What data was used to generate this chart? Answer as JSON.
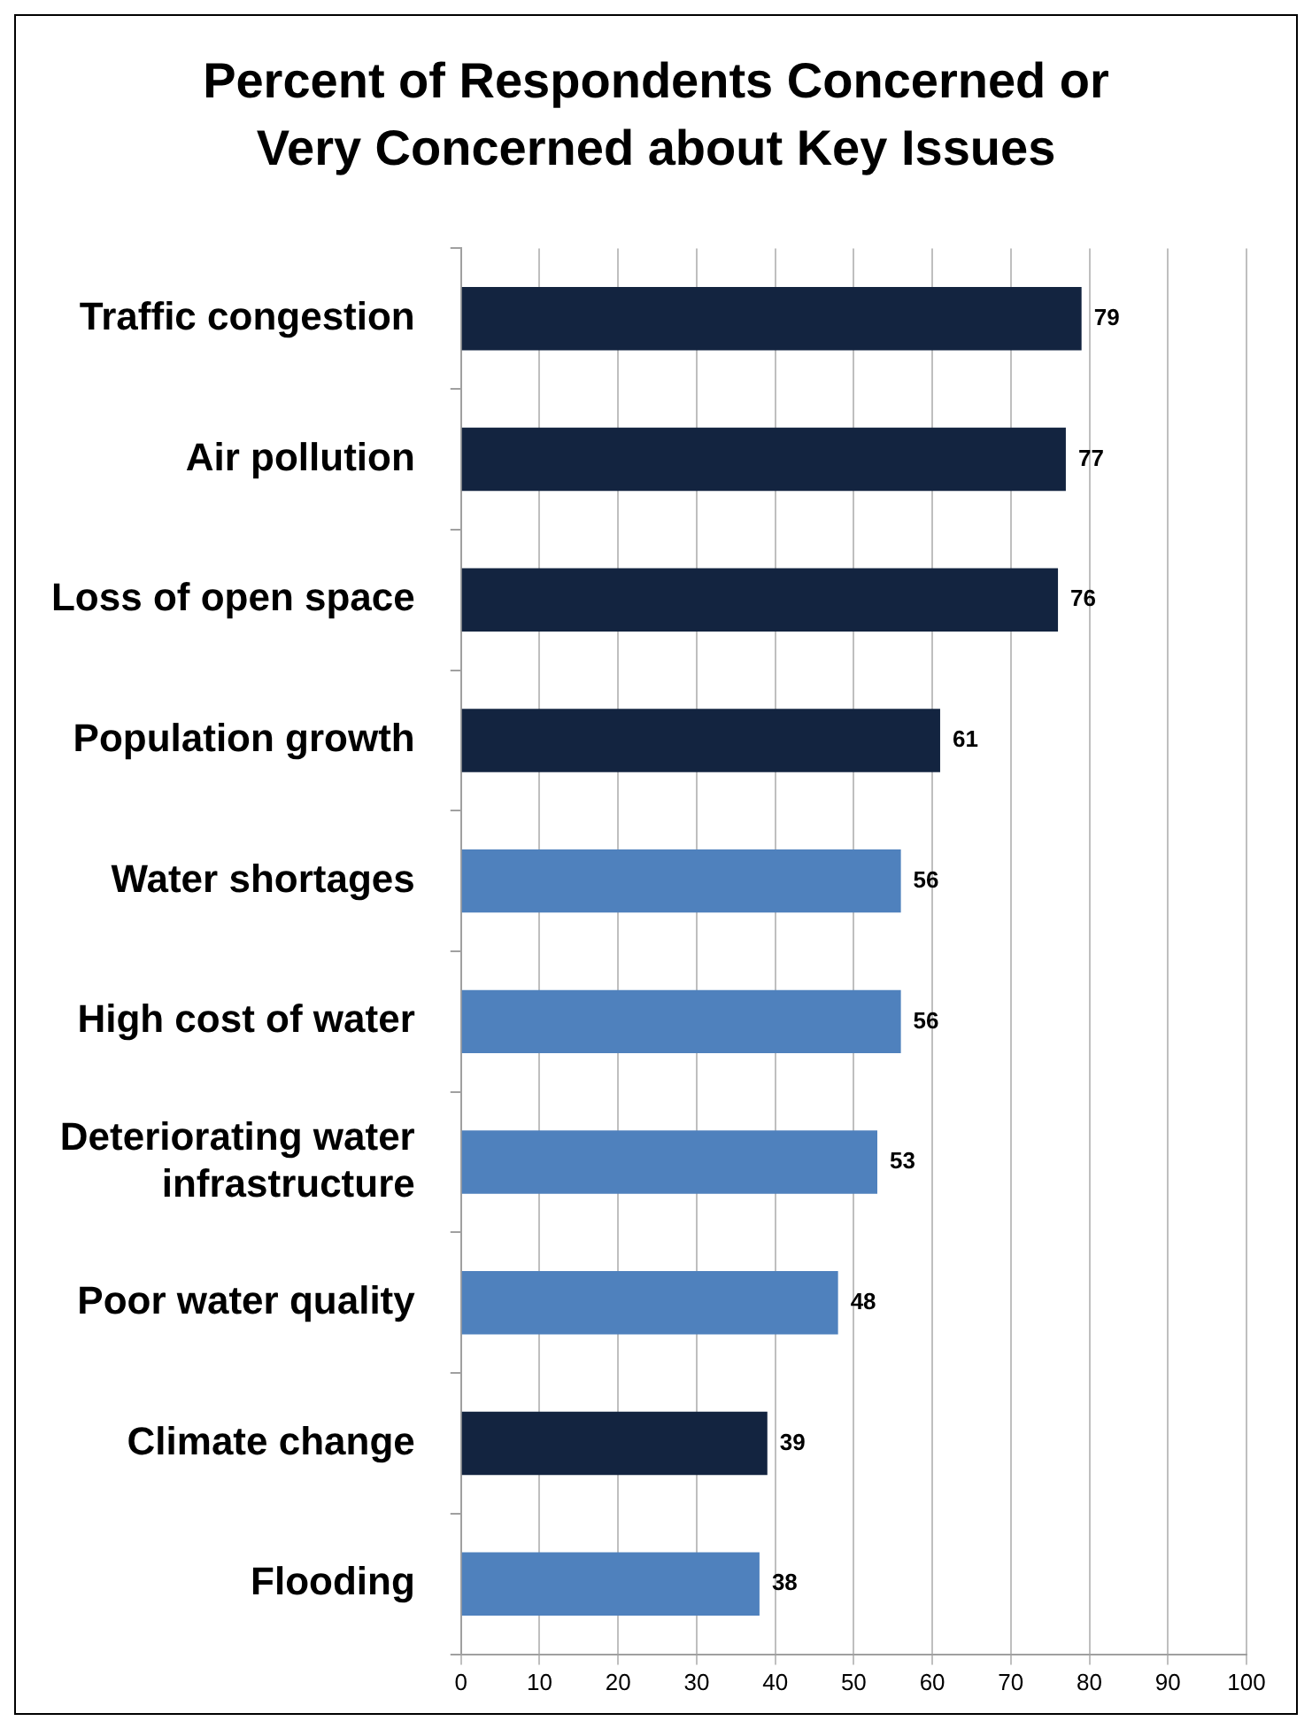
{
  "chart_data": {
    "type": "bar",
    "orientation": "horizontal",
    "title": "Percent of Respondents Concerned or Very Concerned about Key Issues",
    "categories": [
      "Traffic congestion",
      "Air pollution",
      "Loss of open space",
      "Population growth",
      "Water shortages",
      "High cost of water",
      "Deteriorating water infrastructure",
      "Poor water quality",
      "Climate change",
      "Flooding"
    ],
    "values": [
      79,
      77,
      76,
      61,
      56,
      56,
      53,
      48,
      39,
      38
    ],
    "colors": [
      "#132440",
      "#132440",
      "#132440",
      "#132440",
      "#4f81bd",
      "#4f81bd",
      "#4f81bd",
      "#4f81bd",
      "#132440",
      "#4f81bd"
    ],
    "xlim": [
      0,
      100
    ],
    "xticks": [
      0,
      10,
      20,
      30,
      40,
      50,
      60,
      70,
      80,
      90,
      100
    ],
    "grid": "x",
    "data_labels": true
  }
}
